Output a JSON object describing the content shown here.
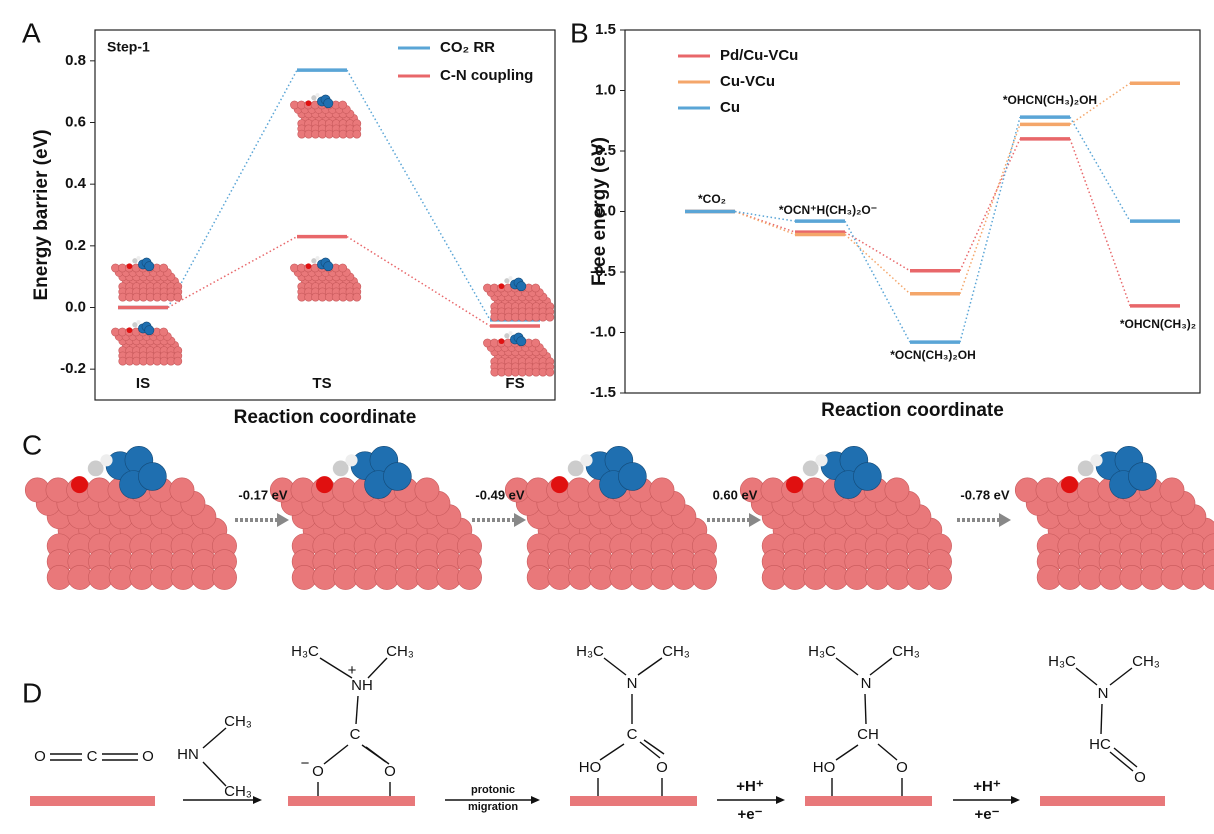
{
  "panels": [
    "A",
    "B",
    "C",
    "D"
  ],
  "chart_data": [
    {
      "type": "energy",
      "annotation": "Step-1",
      "xlabel": "Reaction coordinate",
      "ylabel": "Energy barrier (eV)",
      "categories": [
        "IS",
        "TS",
        "FS"
      ],
      "series": [
        {
          "name": "CO₂ RR",
          "color": "#5aa5d6",
          "values": [
            0,
            0.77,
            -0.04
          ]
        },
        {
          "name": "C-N coupling",
          "color": "#e8676a",
          "values": [
            0,
            0.23,
            -0.06
          ]
        }
      ],
      "ylim": [
        -0.3,
        0.9
      ],
      "yticks": [
        -0.2,
        {
          "value": 0,
          "label": "0.0"
        },
        0.2,
        0.4,
        0.6,
        0.8
      ]
    },
    {
      "type": "energy",
      "xlabel": "Reaction coordinate",
      "ylabel": "Free energy (eV)",
      "categories": [
        null,
        null,
        null,
        null,
        null
      ],
      "annotations": [
        "*CO₂",
        "*OCN⁺H(CH₃)₂O⁻",
        "*OCN(CH₃)₂OH",
        "*OHCN(CH₃)₂OH",
        "*OHCN(CH₃)₂"
      ],
      "series": [
        {
          "name": "Pd/Cu-VCu",
          "color": "#e8676a",
          "values": [
            0,
            -0.17,
            -0.49,
            0.6,
            -0.78
          ]
        },
        {
          "name": "Cu-VCu",
          "color": "#f4a66a",
          "values": [
            0,
            -0.19,
            -0.68,
            0.72,
            1.06
          ]
        },
        {
          "name": "Cu",
          "color": "#5aa5d6",
          "values": [
            0,
            -0.08,
            -1.08,
            0.78,
            -0.08
          ]
        }
      ],
      "ylim": [
        -1.5,
        1.5
      ],
      "yticks": [
        -1.5,
        {
          "value": -1,
          "label": "-1.0"
        },
        -0.5,
        {
          "value": 0,
          "label": "0.0"
        },
        0.5,
        {
          "value": 1,
          "label": "1.0"
        },
        1.5
      ]
    }
  ],
  "panel_c": {
    "steps": [
      "-0.17 eV",
      "-0.49 eV",
      "0.60 eV",
      "-0.78 eV"
    ]
  },
  "panel_d": {
    "labels": [
      "O",
      "C",
      "O",
      "HN",
      "CH₃",
      "CH₃",
      "H₃C",
      "CH₃",
      "NH",
      "+",
      "C",
      "−",
      "O",
      "O",
      "protonic",
      "migration",
      "H₃C",
      "CH₃",
      "N",
      "C",
      "HO",
      "O",
      "+H⁺",
      "+e⁻",
      "H₃C",
      "CH₃",
      "N",
      "CH",
      "HO",
      "O",
      "+H⁺",
      "+e⁻",
      "H₃C",
      "CH₃",
      "N",
      "HC",
      "O"
    ]
  }
}
